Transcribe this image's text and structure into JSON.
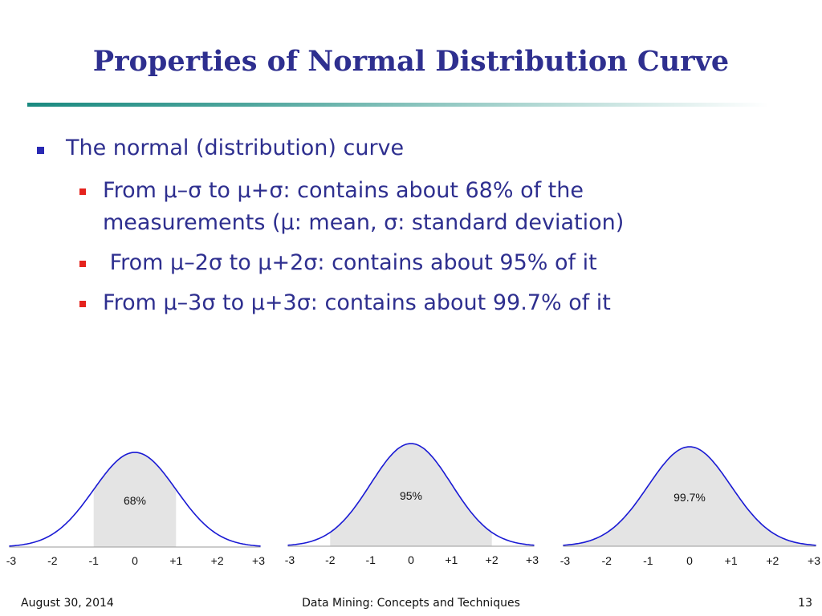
{
  "slide": {
    "title": "Properties of Normal Distribution Curve",
    "bullet": "The normal (distribution) curve",
    "sub_bullets": [
      {
        "line1": "From μ–σ to μ+σ: contains about 68% of the",
        "line2": "measurements  (μ: mean, σ: standard deviation)"
      },
      {
        "line1": " From μ–2σ to μ+2σ: contains about 95% of it"
      },
      {
        "line1": "From μ–3σ to μ+3σ: contains about 99.7% of it"
      }
    ]
  },
  "chart_data": [
    {
      "type": "area",
      "x_ticks": [
        "-3",
        "-2",
        "-1",
        "0",
        "+1",
        "+2",
        "+3"
      ],
      "shaded_range": [
        -1,
        1
      ],
      "label": "68%"
    },
    {
      "type": "area",
      "x_ticks": [
        "-3",
        "-2",
        "-1",
        "0",
        "+1",
        "+2",
        "+3"
      ],
      "shaded_range": [
        -2,
        2
      ],
      "label": "95%"
    },
    {
      "type": "area",
      "x_ticks": [
        "-3",
        "-2",
        "-1",
        "0",
        "+1",
        "+2",
        "+3"
      ],
      "shaded_range": [
        -3,
        3
      ],
      "label": "99.7%"
    }
  ],
  "footer": {
    "date": "August 30, 2014",
    "center": "Data Mining: Concepts and Techniques",
    "page": "13"
  },
  "colors": {
    "title": "#2e2f8f",
    "curve": "#1a1ad4",
    "shade": "#e4e4e4"
  }
}
